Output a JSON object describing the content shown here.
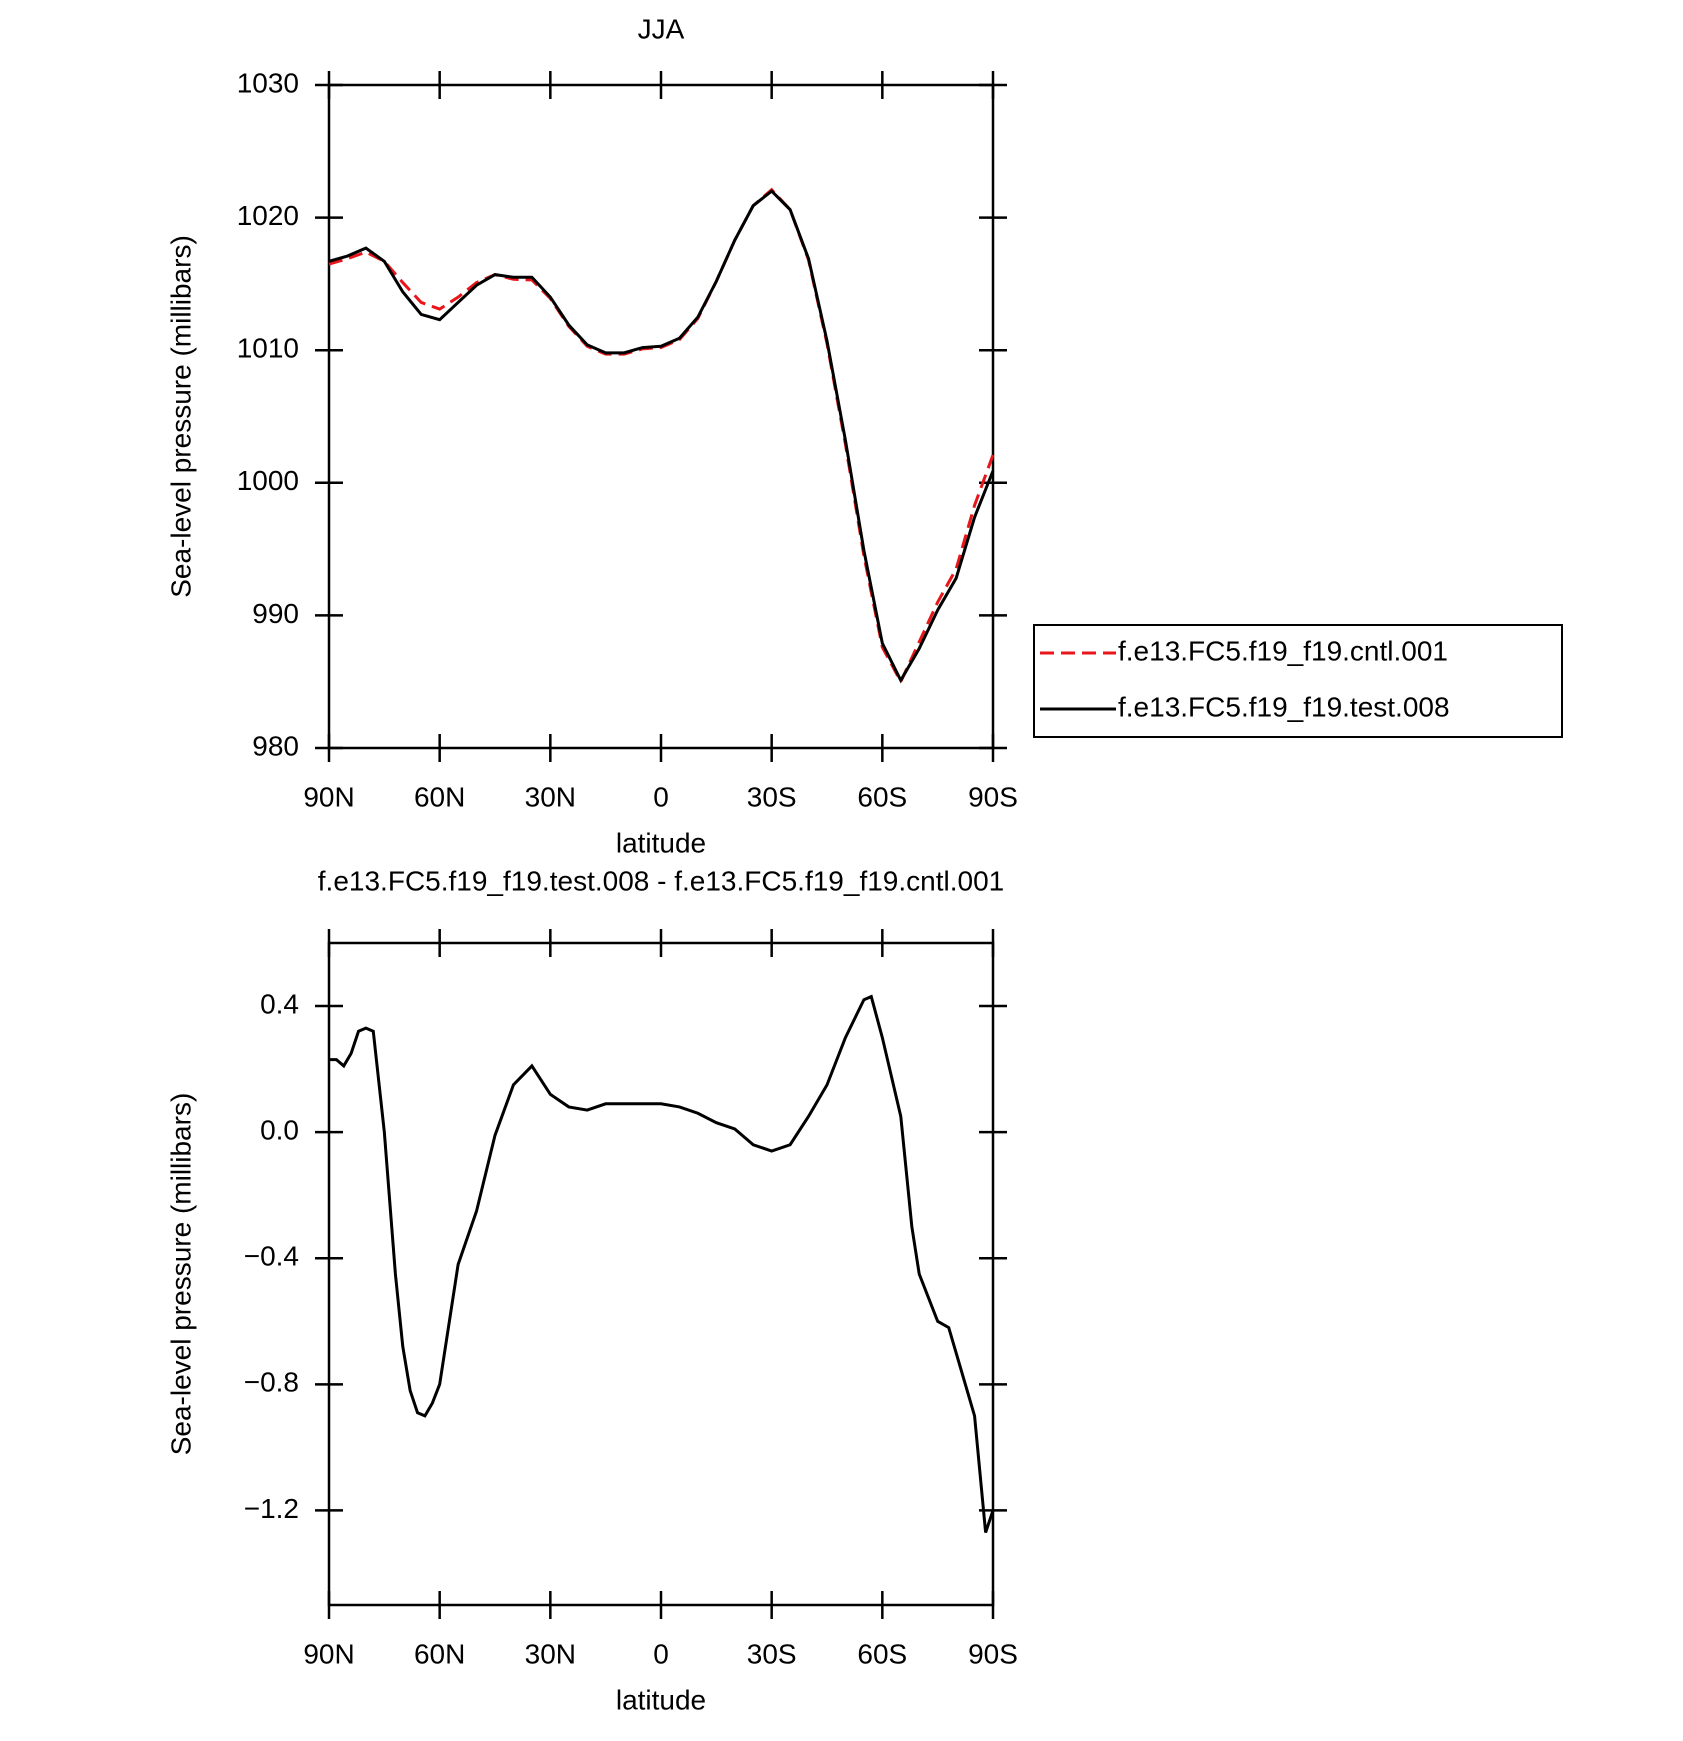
{
  "chart_data": [
    {
      "type": "line",
      "title": "JJA",
      "xlabel": "latitude",
      "ylabel": "Sea-level pressure (millibars)",
      "x": [
        90,
        85,
        80,
        75,
        70,
        65,
        60,
        55,
        50,
        45,
        40,
        35,
        30,
        25,
        20,
        15,
        10,
        5,
        0,
        -5,
        -10,
        -15,
        -20,
        -25,
        -30,
        -35,
        -40,
        -45,
        -50,
        -55,
        -60,
        -65,
        -70,
        -75,
        -80,
        -85,
        -90
      ],
      "series": [
        {
          "name": "f.e13.FC5.f19_f19.cntl.001",
          "color": "#e8161a",
          "dash": true,
          "values": [
            1016.5,
            1016.9,
            1017.4,
            1016.7,
            1015.1,
            1013.6,
            1013.1,
            1014.0,
            1015.1,
            1015.7,
            1015.35,
            1015.3,
            1013.9,
            1011.8,
            1010.3,
            1009.7,
            1009.7,
            1010.1,
            1010.2,
            1010.8,
            1012.4,
            1015.2,
            1018.3,
            1020.9,
            1022.1,
            1020.6,
            1016.8,
            1010.5,
            1002.9,
            994.5,
            987.6,
            985.0,
            988.0,
            991.0,
            993.5,
            998.3,
            1002.1
          ]
        },
        {
          "name": "f.e13.FC5.f19_f19.test.008",
          "color": "#000000",
          "dash": false,
          "values": [
            1016.7,
            1017.1,
            1017.7,
            1016.7,
            1014.4,
            1012.7,
            1012.3,
            1013.6,
            1014.9,
            1015.7,
            1015.5,
            1015.5,
            1014.0,
            1011.9,
            1010.4,
            1009.8,
            1009.8,
            1010.2,
            1010.3,
            1010.9,
            1012.5,
            1015.2,
            1018.3,
            1020.9,
            1022.0,
            1020.6,
            1016.9,
            1010.7,
            1003.2,
            994.9,
            987.9,
            985.1,
            987.5,
            990.4,
            992.8,
            997.4,
            1000.9
          ]
        }
      ],
      "xlim": [
        90,
        -90
      ],
      "xticks": [
        {
          "value": 90,
          "label": "90N"
        },
        {
          "value": 60,
          "label": "60N"
        },
        {
          "value": 30,
          "label": "30N"
        },
        0,
        {
          "value": -30,
          "label": "30S"
        },
        {
          "value": -60,
          "label": "60S"
        },
        {
          "value": -90,
          "label": "90S"
        }
      ],
      "ylim": [
        980,
        1030
      ],
      "yticks": [
        980,
        990,
        1000,
        1010,
        1020,
        1030
      ],
      "legend": "right"
    },
    {
      "type": "line",
      "title": "f.e13.FC5.f19_f19.test.008 - f.e13.FC5.f19_f19.cntl.001",
      "xlabel": "latitude",
      "ylabel": "Sea-level pressure (millibars)",
      "x": [
        90,
        88,
        86,
        84,
        82,
        80,
        78,
        75,
        72,
        70,
        68,
        66,
        64,
        62,
        60,
        55,
        50,
        45,
        40,
        35,
        30,
        25,
        20,
        15,
        10,
        5,
        0,
        -5,
        -10,
        -15,
        -20,
        -25,
        -30,
        -35,
        -40,
        -45,
        -50,
        -55,
        -57,
        -60,
        -65,
        -68,
        -70,
        -75,
        -78,
        -80,
        -85,
        -88,
        -90
      ],
      "series": [
        {
          "name": "f.e13.FC5.f19_f19.test.008 - f.e13.FC5.f19_f19.cntl.001",
          "color": "#000000",
          "dash": false,
          "values": [
            0.23,
            0.23,
            0.21,
            0.25,
            0.32,
            0.33,
            0.32,
            0.0,
            -0.45,
            -0.68,
            -0.82,
            -0.89,
            -0.9,
            -0.86,
            -0.8,
            -0.42,
            -0.25,
            -0.01,
            0.15,
            0.21,
            0.12,
            0.08,
            0.07,
            0.09,
            0.09,
            0.09,
            0.09,
            0.08,
            0.06,
            0.03,
            0.01,
            -0.04,
            -0.06,
            -0.04,
            0.05,
            0.15,
            0.3,
            0.42,
            0.43,
            0.3,
            0.05,
            -0.3,
            -0.45,
            -0.6,
            -0.62,
            -0.7,
            -0.9,
            -1.27,
            -1.2
          ]
        }
      ],
      "xlim": [
        90,
        -90
      ],
      "xticks": [
        {
          "value": 90,
          "label": "90N"
        },
        {
          "value": 60,
          "label": "60N"
        },
        {
          "value": 30,
          "label": "30N"
        },
        0,
        {
          "value": -30,
          "label": "30S"
        },
        {
          "value": -60,
          "label": "60S"
        },
        {
          "value": -90,
          "label": "90S"
        }
      ],
      "ylim": [
        -1.5,
        0.6
      ],
      "yticks": [
        {
          "value": -1.2,
          "label": "−1.2"
        },
        {
          "value": -0.8,
          "label": "−0.8"
        },
        {
          "value": -0.4,
          "label": "−0.4"
        },
        {
          "value": 0,
          "label": "0.0"
        },
        {
          "value": 0.4,
          "label": "0.4"
        }
      ]
    }
  ]
}
